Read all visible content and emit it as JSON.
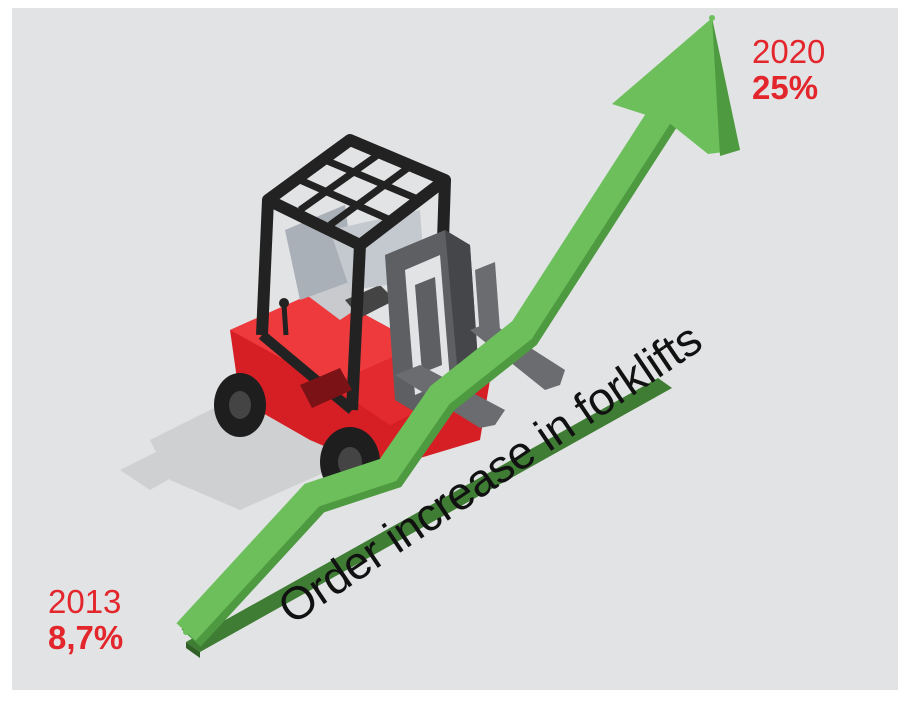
{
  "chart_data": {
    "type": "line",
    "title": "Order increase in forklifts",
    "x": [
      "2013",
      "2020"
    ],
    "series": [
      {
        "values": [
          8.7,
          25
        ]
      }
    ],
    "annotations": [
      {
        "year": "2013",
        "value": "8,7%"
      },
      {
        "year": "2020",
        "value": "25%"
      }
    ],
    "grid": false,
    "legend": "none"
  },
  "colors": {
    "background": "#e2e3e4",
    "arrow": "#6cbf5b",
    "arrow_shade": "#4e9a40",
    "baseline": "#3f7d34",
    "accent_text": "#e3262c",
    "forklift_body": "#e8262a"
  },
  "icons": {
    "forklift": "forklift-illustration"
  }
}
